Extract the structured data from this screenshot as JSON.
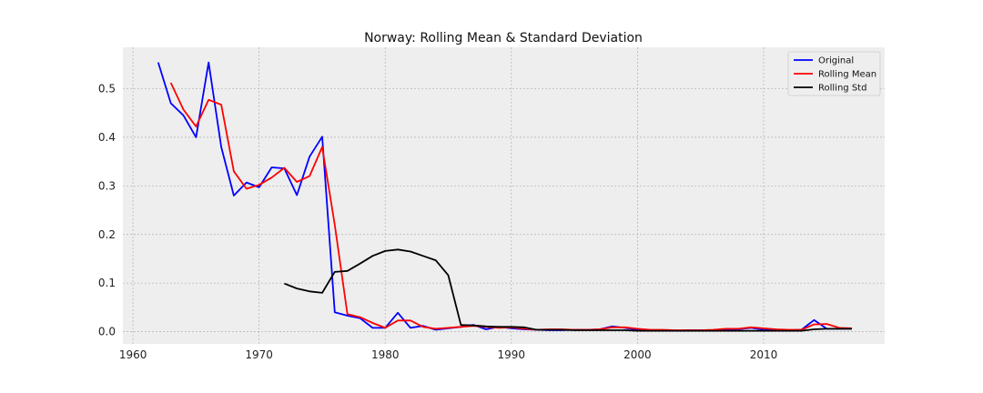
{
  "chart_data": {
    "type": "line",
    "title": "Norway: Rolling Mean & Standard Deviation",
    "xlabel": "",
    "ylabel": "",
    "xlim": [
      1959.2,
      2019.6
    ],
    "ylim": [
      -0.025,
      0.585
    ],
    "xticks": [
      1960,
      1970,
      1980,
      1990,
      2000,
      2010
    ],
    "yticks": [
      0.0,
      0.1,
      0.2,
      0.3,
      0.4,
      0.5
    ],
    "grid": true,
    "legend_position": "top-right",
    "series": [
      {
        "name": "Original",
        "color": "#0000ff",
        "x": [
          1962,
          1963,
          1964,
          1965,
          1966,
          1967,
          1968,
          1969,
          1970,
          1971,
          1972,
          1973,
          1974,
          1975,
          1976,
          1977,
          1978,
          1979,
          1980,
          1981,
          1982,
          1983,
          1984,
          1985,
          1986,
          1987,
          1988,
          1989,
          1990,
          1991,
          1992,
          1993,
          1994,
          1995,
          1996,
          1997,
          1998,
          1999,
          2000,
          2001,
          2002,
          2003,
          2004,
          2005,
          2006,
          2007,
          2008,
          2009,
          2010,
          2011,
          2012,
          2013,
          2014,
          2015,
          2016,
          2017
        ],
        "y": [
          0.554,
          0.47,
          0.445,
          0.4,
          0.554,
          0.38,
          0.28,
          0.307,
          0.297,
          0.338,
          0.336,
          0.281,
          0.36,
          0.401,
          0.04,
          0.033,
          0.028,
          0.008,
          0.008,
          0.039,
          0.008,
          0.012,
          0.004,
          0.007,
          0.01,
          0.014,
          0.005,
          0.01,
          0.007,
          0.005,
          0.004,
          0.003,
          0.003,
          0.004,
          0.004,
          0.005,
          0.011,
          0.008,
          0.004,
          0.003,
          0.003,
          0.002,
          0.003,
          0.003,
          0.003,
          0.005,
          0.005,
          0.008,
          0.004,
          0.003,
          0.003,
          0.004,
          0.024,
          0.006,
          0.006,
          0.006
        ]
      },
      {
        "name": "Rolling Mean",
        "color": "#ff0000",
        "x": [
          1963,
          1964,
          1965,
          1966,
          1967,
          1968,
          1969,
          1970,
          1971,
          1972,
          1973,
          1974,
          1975,
          1976,
          1977,
          1978,
          1979,
          1980,
          1981,
          1982,
          1983,
          1984,
          1985,
          1986,
          1987,
          1988,
          1989,
          1990,
          1991,
          1992,
          1993,
          1994,
          1995,
          1996,
          1997,
          1998,
          1999,
          2000,
          2001,
          2002,
          2003,
          2004,
          2005,
          2006,
          2007,
          2008,
          2009,
          2010,
          2011,
          2012,
          2013,
          2014,
          2015,
          2016,
          2017
        ],
        "y": [
          0.512,
          0.457,
          0.422,
          0.477,
          0.467,
          0.33,
          0.294,
          0.302,
          0.317,
          0.337,
          0.308,
          0.32,
          0.38,
          0.22,
          0.036,
          0.03,
          0.018,
          0.008,
          0.023,
          0.023,
          0.01,
          0.006,
          0.008,
          0.01,
          0.012,
          0.01,
          0.008,
          0.009,
          0.006,
          0.004,
          0.005,
          0.005,
          0.004,
          0.004,
          0.005,
          0.009,
          0.009,
          0.006,
          0.004,
          0.004,
          0.003,
          0.003,
          0.003,
          0.004,
          0.006,
          0.006,
          0.009,
          0.007,
          0.005,
          0.004,
          0.004,
          0.015,
          0.016,
          0.008,
          0.007
        ]
      },
      {
        "name": "Rolling Std",
        "color": "#000000",
        "x": [
          1972,
          1973,
          1974,
          1975,
          1976,
          1977,
          1978,
          1979,
          1980,
          1981,
          1982,
          1983,
          1984,
          1985,
          1986,
          1987,
          1988,
          1989,
          1990,
          1991,
          1992,
          1993,
          1994,
          1995,
          1996,
          1997,
          1998,
          1999,
          2000,
          2001,
          2002,
          2003,
          2004,
          2005,
          2006,
          2007,
          2008,
          2009,
          2010,
          2011,
          2012,
          2013,
          2014,
          2015,
          2016,
          2017
        ],
        "y": [
          0.099,
          0.089,
          0.083,
          0.08,
          0.123,
          0.125,
          0.14,
          0.156,
          0.166,
          0.169,
          0.165,
          0.156,
          0.147,
          0.116,
          0.014,
          0.013,
          0.011,
          0.01,
          0.01,
          0.009,
          0.004,
          0.004,
          0.004,
          0.003,
          0.003,
          0.003,
          0.003,
          0.003,
          0.002,
          0.002,
          0.002,
          0.002,
          0.002,
          0.002,
          0.002,
          0.002,
          0.002,
          0.002,
          0.002,
          0.002,
          0.002,
          0.002,
          0.005,
          0.006,
          0.006,
          0.006
        ]
      }
    ]
  }
}
